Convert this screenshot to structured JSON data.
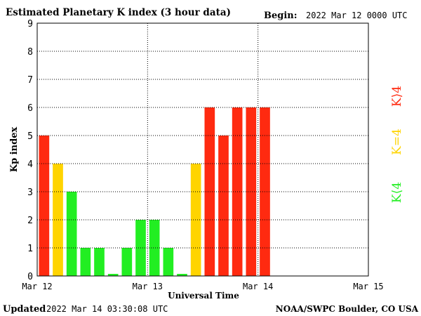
{
  "header": {
    "title": "Estimated Planetary K index (3 hour data)",
    "begin_label": "Begin:",
    "begin_value": "2022 Mar 12 0000 UTC"
  },
  "footer": {
    "updated_label": "Updated",
    "updated_value": "2022 Mar 14 03:30:08 UTC",
    "source": "NOAA/SWPC Boulder, CO USA"
  },
  "legend": {
    "high": "K⟩4",
    "mid": "K=4",
    "low": "K⟨4"
  },
  "colors": {
    "high": "#ff2a10",
    "mid": "#ffd400",
    "low": "#22ee22"
  },
  "chart_data": {
    "type": "bar",
    "title": "Estimated Planetary K index (3 hour data)",
    "xlabel": "Universal Time",
    "ylabel": "Kp index",
    "ylim": [
      0,
      9
    ],
    "yticks": [
      "0",
      "1",
      "2",
      "3",
      "4",
      "5",
      "6",
      "7",
      "8",
      "9"
    ],
    "xticks": [
      "Mar 12",
      "Mar 13",
      "Mar 14",
      "Mar 15"
    ],
    "interval_hours": 3,
    "grid": true,
    "values": [
      5,
      4,
      3,
      1,
      1,
      0,
      1,
      2,
      2,
      1,
      0,
      4,
      6,
      5,
      6,
      6,
      6
    ]
  }
}
